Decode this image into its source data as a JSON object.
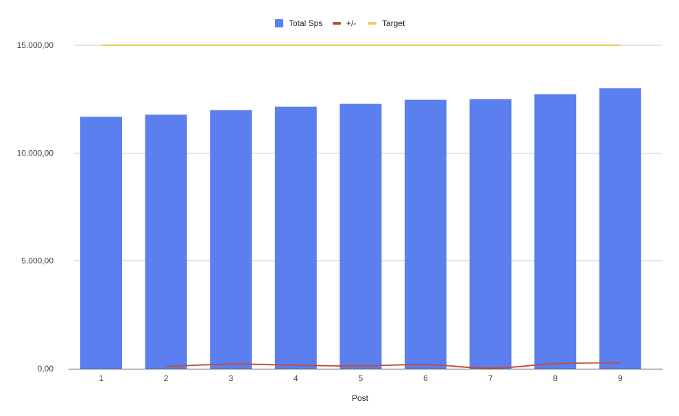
{
  "chart_data": {
    "type": "bar",
    "xlabel": "Post",
    "ylabel": "",
    "ylim": [
      0,
      15000
    ],
    "yticks": [
      0,
      5000,
      10000,
      15000
    ],
    "ytick_labels": [
      "0,00",
      "5.000,00",
      "10.000,00",
      "15.000,00"
    ],
    "categories": [
      "1",
      "2",
      "3",
      "4",
      "5",
      "6",
      "7",
      "8",
      "9"
    ],
    "grid": true,
    "legend_position": "top-center",
    "series": [
      {
        "name": "Total Sps",
        "kind": "bar",
        "color": "#5b7fee",
        "values": [
          11680,
          11780,
          11990,
          12150,
          12280,
          12470,
          12500,
          12730,
          13010
        ]
      },
      {
        "name": "+/-",
        "kind": "line",
        "color": "#c0503e",
        "values": [
          null,
          100,
          210,
          160,
          130,
          190,
          30,
          230,
          280
        ]
      },
      {
        "name": "Target",
        "kind": "line",
        "color": "#e2cf5a",
        "values": [
          15000,
          15000,
          15000,
          15000,
          15000,
          15000,
          15000,
          15000,
          15000
        ]
      }
    ]
  }
}
